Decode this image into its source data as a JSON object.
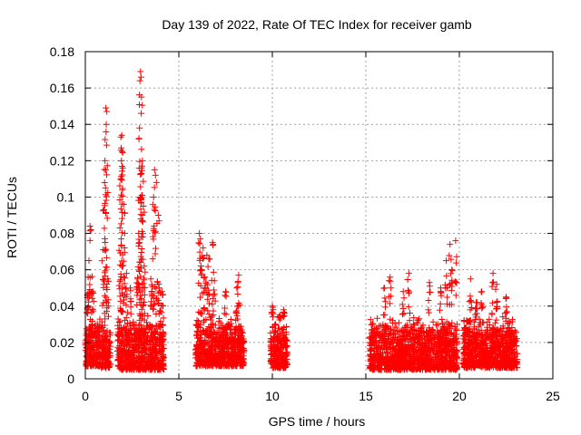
{
  "chart_data": {
    "type": "scatter",
    "title": "Day 139 of 2022, Rate Of TEC Index for receiver gamb",
    "xlabel": "GPS time / hours",
    "ylabel": "ROTI / TECUs",
    "xlim": [
      0,
      25
    ],
    "ylim": [
      0,
      0.18
    ],
    "xticks": [
      0,
      5,
      10,
      15,
      20,
      25
    ],
    "yticks": [
      0,
      0.02,
      0.04,
      0.06,
      0.08,
      0.1,
      0.12,
      0.14,
      0.16,
      0.18
    ],
    "xtick_labels": [
      "0",
      "5",
      "10",
      "15",
      "20",
      "25"
    ],
    "ytick_labels": [
      "0",
      "0.02",
      "0.04",
      "0.06",
      "0.08",
      "0.1",
      "0.12",
      "0.14",
      "0.16",
      "0.18"
    ],
    "grid": true,
    "marker": "+",
    "color": "#ff0000",
    "clusters": [
      {
        "x_range": [
          0.0,
          0.8
        ],
        "y_base": [
          0.007,
          0.035
        ],
        "spikes": [
          [
            0.25,
            0.084
          ],
          [
            0.3,
            0.082
          ],
          [
            0.15,
            0.056
          ],
          [
            0.1,
            0.046
          ],
          [
            0.4,
            0.048
          ]
        ]
      },
      {
        "x_range": [
          0.85,
          1.35
        ],
        "y_base": [
          0.006,
          0.032
        ],
        "spikes": [
          [
            1.1,
            0.149
          ],
          [
            1.15,
            0.147
          ],
          [
            1.12,
            0.14
          ],
          [
            1.05,
            0.12
          ],
          [
            1.08,
            0.105
          ],
          [
            1.0,
            0.093
          ],
          [
            1.1,
            0.091
          ],
          [
            0.95,
            0.071
          ],
          [
            1.2,
            0.055
          ]
        ]
      },
      {
        "x_range": [
          1.7,
          2.7
        ],
        "y_base": [
          0.005,
          0.035
        ],
        "spikes": [
          [
            1.95,
            0.134
          ],
          [
            1.9,
            0.133
          ],
          [
            1.92,
            0.127
          ],
          [
            1.97,
            0.125
          ],
          [
            1.93,
            0.12
          ],
          [
            2.0,
            0.116
          ],
          [
            1.9,
            0.11
          ],
          [
            2.05,
            0.096
          ],
          [
            1.85,
            0.083
          ],
          [
            2.1,
            0.072
          ],
          [
            2.2,
            0.058
          ],
          [
            2.4,
            0.05
          ]
        ]
      },
      {
        "x_range": [
          2.7,
          3.3
        ],
        "y_base": [
          0.005,
          0.04
        ],
        "spikes": [
          [
            2.95,
            0.169
          ],
          [
            2.98,
            0.166
          ],
          [
            2.92,
            0.164
          ],
          [
            3.0,
            0.155
          ],
          [
            2.9,
            0.138
          ],
          [
            3.05,
            0.12
          ],
          [
            3.0,
            0.113
          ],
          [
            2.95,
            0.1
          ],
          [
            3.1,
            0.095
          ],
          [
            3.05,
            0.09
          ],
          [
            2.85,
            0.08
          ],
          [
            2.9,
            0.075
          ],
          [
            3.15,
            0.062
          ],
          [
            2.8,
            0.055
          ]
        ]
      },
      {
        "x_range": [
          3.3,
          4.2
        ],
        "y_base": [
          0.005,
          0.035
        ],
        "spikes": [
          [
            3.7,
            0.115
          ],
          [
            3.75,
            0.112
          ],
          [
            3.8,
            0.108
          ],
          [
            3.65,
            0.1
          ],
          [
            3.9,
            0.09
          ],
          [
            3.6,
            0.066
          ],
          [
            3.5,
            0.055
          ],
          [
            3.95,
            0.05
          ],
          [
            4.1,
            0.048
          ]
        ]
      },
      {
        "x_range": [
          5.9,
          8.5
        ],
        "y_base": [
          0.007,
          0.035
        ],
        "spikes": [
          [
            6.1,
            0.08
          ],
          [
            6.15,
            0.077
          ],
          [
            6.3,
            0.072
          ],
          [
            6.5,
            0.068
          ],
          [
            6.8,
            0.075
          ],
          [
            6.6,
            0.066
          ],
          [
            6.2,
            0.06
          ],
          [
            6.4,
            0.056
          ],
          [
            6.9,
            0.054
          ],
          [
            7.5,
            0.048
          ],
          [
            8.2,
            0.057
          ],
          [
            8.1,
            0.05
          ]
        ]
      },
      {
        "x_range": [
          9.9,
          10.8
        ],
        "y_base": [
          0.006,
          0.032
        ],
        "spikes": [
          [
            10.0,
            0.04
          ],
          [
            10.6,
            0.038
          ],
          [
            10.4,
            0.035
          ]
        ]
      },
      {
        "x_range": [
          15.2,
          19.9
        ],
        "y_base": [
          0.005,
          0.035
        ],
        "spikes": [
          [
            19.5,
            0.074
          ],
          [
            19.8,
            0.076
          ],
          [
            19.3,
            0.065
          ],
          [
            19.6,
            0.06
          ],
          [
            17.3,
            0.058
          ],
          [
            16.3,
            0.056
          ],
          [
            18.4,
            0.053
          ],
          [
            16.0,
            0.05
          ],
          [
            17.0,
            0.048
          ],
          [
            19.0,
            0.05
          ]
        ]
      },
      {
        "x_range": [
          20.2,
          23.1
        ],
        "y_base": [
          0.006,
          0.035
        ],
        "spikes": [
          [
            21.8,
            0.058
          ],
          [
            20.6,
            0.055
          ],
          [
            22.0,
            0.052
          ],
          [
            21.2,
            0.048
          ],
          [
            22.5,
            0.045
          ],
          [
            20.9,
            0.042
          ]
        ]
      }
    ]
  }
}
